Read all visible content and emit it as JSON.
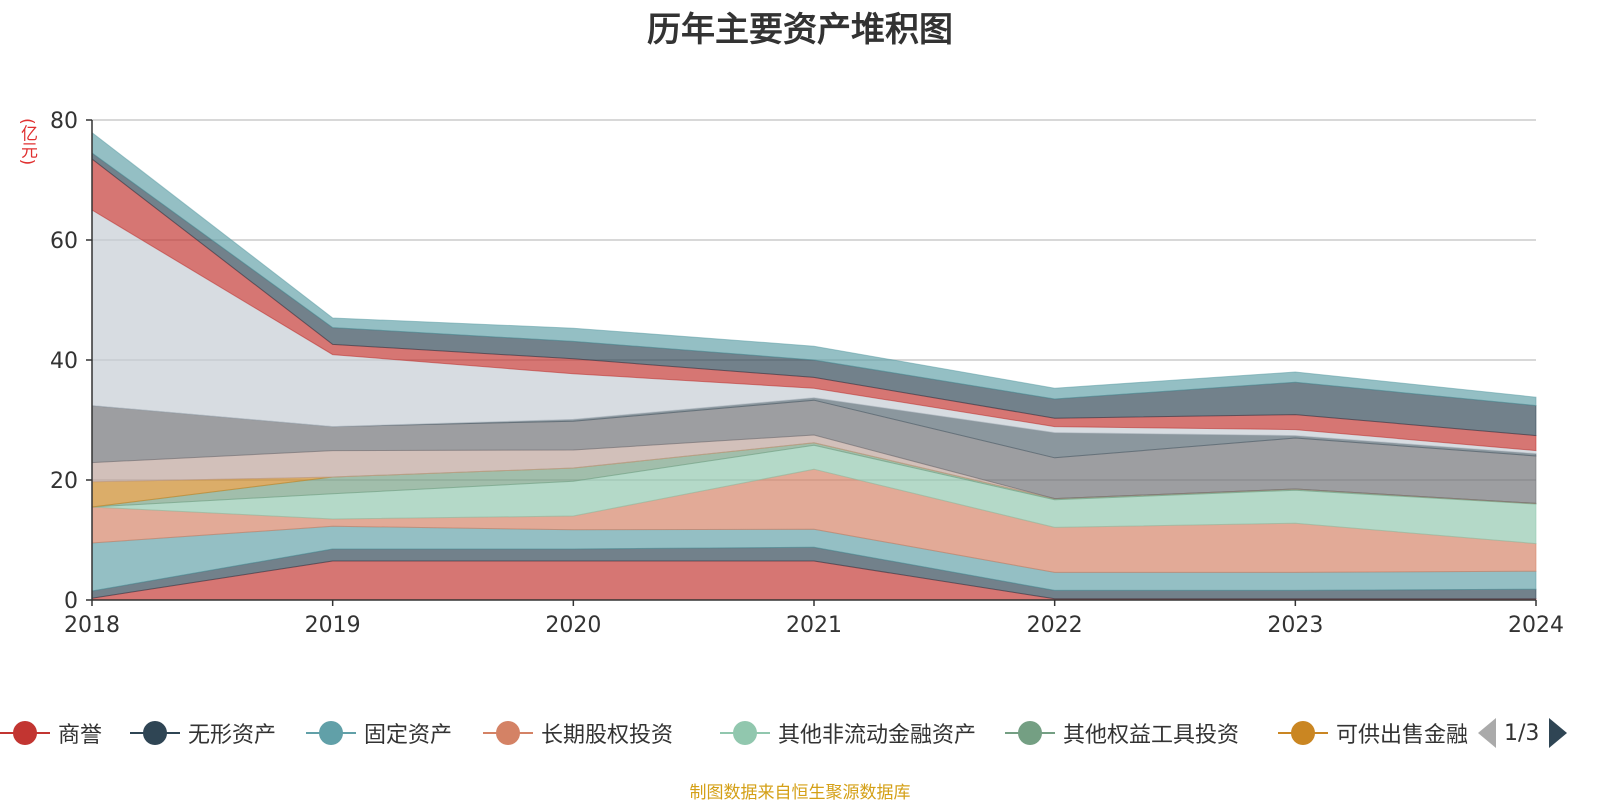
{
  "title": "历年主要资产堆积图",
  "unit_label": "(亿元)",
  "source": "制图数据来自恒生聚源数据库",
  "pager": {
    "text": "1/3"
  },
  "chart_data": {
    "type": "area",
    "stacked": true,
    "x": [
      "2018",
      "2019",
      "2020",
      "2021",
      "2022",
      "2023",
      "2024"
    ],
    "ylim": [
      0,
      80
    ],
    "yticks": [
      0,
      20,
      40,
      60,
      80
    ],
    "grid": true,
    "legend_position": "bottom",
    "series": [
      {
        "name": "商誉",
        "color": "#c23531",
        "legend": true,
        "values": [
          0.3,
          6.5,
          6.5,
          6.5,
          0.2,
          0.2,
          0.2
        ]
      },
      {
        "name": "无形资产",
        "color": "#2f4554",
        "legend": true,
        "values": [
          1.2,
          2.0,
          2.0,
          2.3,
          1.4,
          1.4,
          1.6
        ]
      },
      {
        "name": "固定资产",
        "color": "#61a0a8",
        "legend": true,
        "values": [
          8.0,
          3.8,
          3.2,
          3.0,
          3.0,
          3.0,
          3.0
        ]
      },
      {
        "name": "长期股权投资",
        "color": "#d48265",
        "legend": true,
        "values": [
          6.0,
          1.2,
          2.3,
          10.0,
          7.5,
          8.2,
          4.6
        ]
      },
      {
        "name": "其他非流动金融资产",
        "color": "#91c7ae",
        "legend": true,
        "values": [
          0,
          4.2,
          5.8,
          4.0,
          4.6,
          5.5,
          6.6
        ]
      },
      {
        "name": "其他权益工具投资",
        "color": "#749f83",
        "legend": true,
        "values": [
          0,
          2.8,
          2.2,
          0.4,
          0.2,
          0.2,
          0.1
        ]
      },
      {
        "name": "可供出售金融",
        "color": "#ca8622",
        "legend": true,
        "values": [
          4.2,
          0,
          0,
          0,
          0,
          0,
          0
        ]
      },
      {
        "name": "",
        "color": "#bda29a",
        "legend": false,
        "values": [
          3.2,
          4.4,
          3.0,
          1.3,
          0,
          0,
          0
        ]
      },
      {
        "name": "",
        "color": "#6e7074",
        "legend": false,
        "values": [
          9.5,
          4.0,
          4.8,
          5.8,
          6.8,
          8.5,
          7.9
        ]
      },
      {
        "name": "",
        "color": "#546570",
        "legend": false,
        "values": [
          0,
          0,
          0.3,
          0.4,
          4.2,
          0.4,
          0.4
        ]
      },
      {
        "name": "",
        "color": "#c4ccd3",
        "legend": false,
        "values": [
          32.6,
          12.0,
          7.6,
          1.6,
          1.0,
          1.0,
          0.5
        ]
      },
      {
        "name": "",
        "color": "#c23531",
        "legend": false,
        "values": [
          8.5,
          1.7,
          2.5,
          1.8,
          1.4,
          2.5,
          2.5
        ]
      },
      {
        "name": "",
        "color": "#2f4554",
        "legend": false,
        "values": [
          1.0,
          2.8,
          2.9,
          2.9,
          3.2,
          5.4,
          5.0
        ]
      },
      {
        "name": "",
        "color": "#61a0a8",
        "legend": false,
        "values": [
          3.4,
          1.6,
          2.2,
          2.3,
          1.8,
          1.7,
          1.4
        ]
      }
    ]
  }
}
